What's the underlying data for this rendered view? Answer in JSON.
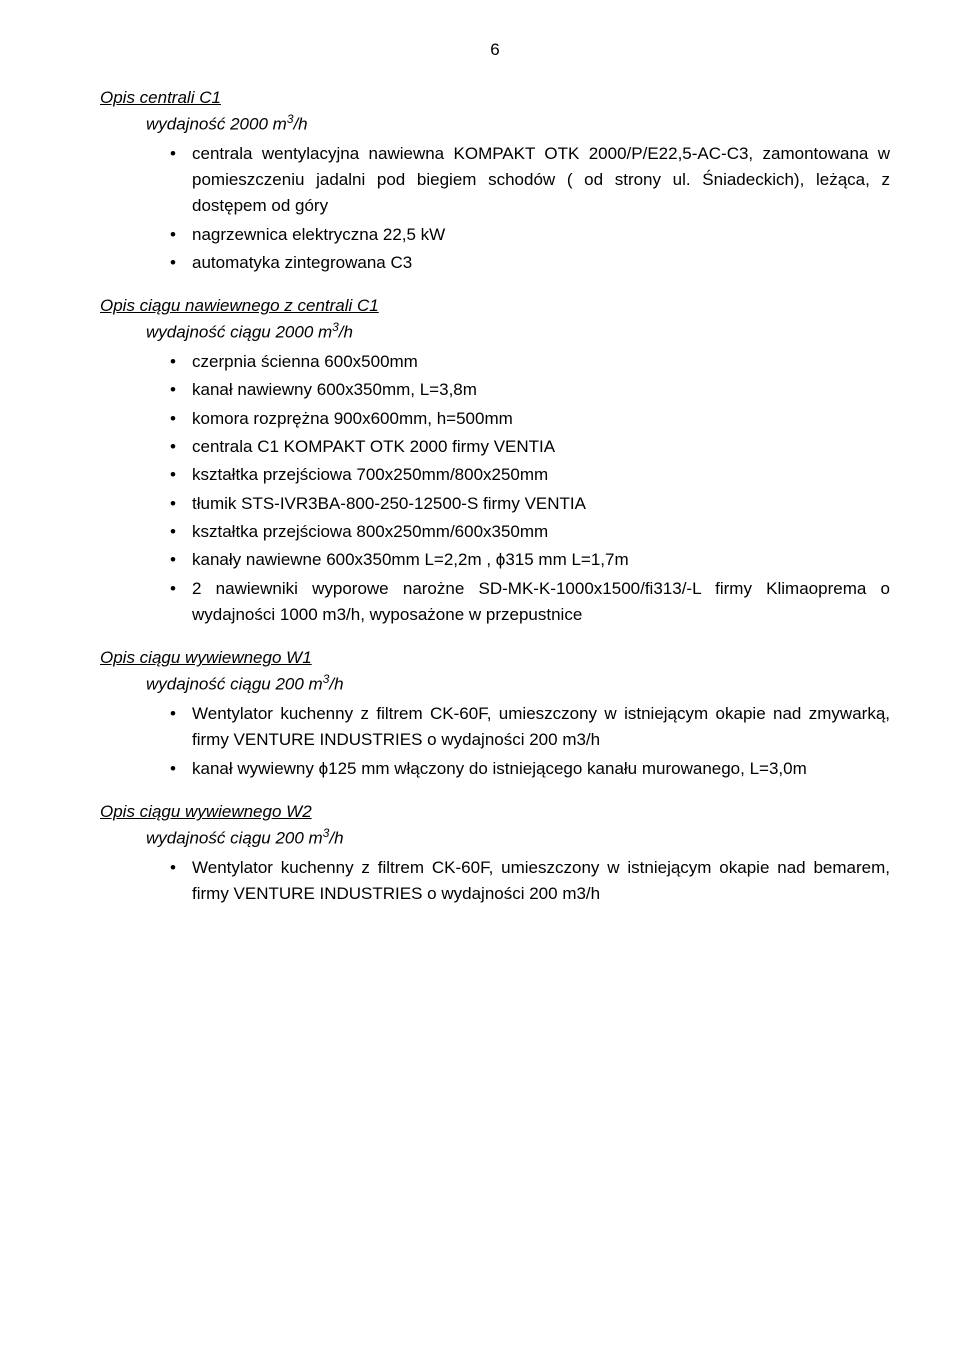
{
  "page_number": "6",
  "sections": [
    {
      "title": "Opis centrali C1",
      "subtitle_prefix": "wydajność 2000 m",
      "subtitle_sup": "3",
      "subtitle_suffix": "/h",
      "items": [
        "centrala wentylacyjna nawiewna KOMPAKT OTK 2000/P/E22,5-AC-C3, zamontowana w pomieszczeniu jadalni pod biegiem schodów ( od strony ul. Śniadeckich), leżąca, z dostępem od góry",
        "nagrzewnica elektryczna 22,5 kW",
        "automatyka zintegrowana C3"
      ]
    },
    {
      "title": "Opis ciągu nawiewnego z centrali C1",
      "subtitle_prefix": "wydajność ciągu 2000 m",
      "subtitle_sup": "3",
      "subtitle_suffix": "/h",
      "items": [
        "czerpnia  ścienna 600x500mm",
        "kanał nawiewny 600x350mm, L=3,8m",
        "komora rozprężna 900x600mm, h=500mm",
        "centrala C1 KOMPAKT OTK 2000 firmy VENTIA",
        "kształtka przejściowa 700x250mm/800x250mm",
        "tłumik STS-IVR3BA-800-250-12500-S firmy VENTIA",
        "kształtka przejściowa 800x250mm/600x350mm",
        "kanały nawiewne 600x350mm L=2,2m , ϕ315 mm L=1,7m",
        "2 nawiewniki wyporowe narożne SD-MK-K-1000x1500/fi313/-L firmy Klimaoprema o wydajności 1000 m3/h, wyposażone w przepustnice"
      ]
    },
    {
      "title": "Opis ciągu wywiewnego W1",
      "subtitle_prefix": "wydajność ciągu 200 m",
      "subtitle_sup": "3",
      "subtitle_suffix": "/h",
      "items": [
        "Wentylator kuchenny z filtrem CK-60F, umieszczony w istniejącym okapie nad zmywarką, firmy VENTURE INDUSTRIES o wydajności 200 m3/h",
        "kanał wywiewny  ϕ125 mm włączony do istniejącego kanału murowanego, L=3,0m"
      ]
    },
    {
      "title": "Opis ciągu wywiewnego W2",
      "subtitle_prefix": "wydajność ciągu 200 m",
      "subtitle_sup": "3",
      "subtitle_suffix": "/h",
      "items": [
        "Wentylator kuchenny z filtrem CK-60F, umieszczony w istniejącym okapie nad bemarem, firmy VENTURE INDUSTRIES o wydajności 200 m3/h"
      ]
    }
  ]
}
